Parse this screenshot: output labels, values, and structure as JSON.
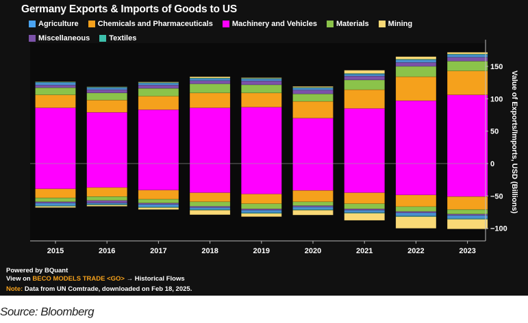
{
  "chart_data": {
    "type": "bar",
    "stacked": true,
    "title": "Germany Exports & Imports of Goods to US",
    "ylabel": "Value of Exports/Imports, USD (Billions)",
    "xlabel": "",
    "ylim": [
      -115,
      185
    ],
    "yticks": [
      -100,
      -50,
      0,
      50,
      100,
      150
    ],
    "grid": false,
    "legend_position": "top",
    "y_axis_side": "right",
    "categories": [
      "2015",
      "2016",
      "2017",
      "2018",
      "2019",
      "2020",
      "2021",
      "2022",
      "2023"
    ],
    "series": [
      {
        "name": "Machinery and Vehicles",
        "color": "#ff00ff",
        "positive": [
          86,
          79,
          83,
          86,
          87,
          70,
          85,
          97,
          106
        ],
        "negative": [
          -39,
          -37,
          -41,
          -45,
          -47,
          -41.5,
          -45,
          -48.5,
          -51
        ]
      },
      {
        "name": "Chemicals and Pharmaceuticals",
        "color": "#f5a11c",
        "positive": [
          20,
          19,
          21,
          23,
          22,
          26,
          29,
          37,
          37
        ],
        "negative": [
          -14,
          -14,
          -14,
          -14,
          -15,
          -17.5,
          -17,
          -18,
          -20
        ]
      },
      {
        "name": "Materials",
        "color": "#8bc34a",
        "positive": [
          11,
          11,
          12,
          14,
          12.5,
          11.5,
          15,
          16,
          15
        ],
        "negative": [
          -6,
          -6,
          -6,
          -7,
          -8,
          -6,
          -8,
          -7.5,
          -7
        ]
      },
      {
        "name": "Miscellaneous",
        "color": "#7b52a8",
        "positive": [
          4,
          5,
          5,
          5,
          6,
          6,
          6,
          6,
          6
        ],
        "negative": [
          -2,
          -4,
          -2,
          -2,
          -2,
          -2,
          -2,
          -2,
          -2
        ]
      },
      {
        "name": "Agriculture",
        "color": "#4a8fd0",
        "positive": [
          4,
          3,
          3,
          3,
          3,
          3,
          3,
          4,
          4
        ],
        "negative": [
          -4,
          -2,
          -4,
          -3,
          -4,
          -4,
          -3.7,
          -5,
          -5
        ]
      },
      {
        "name": "Textiles",
        "color": "#3dbfab",
        "positive": [
          1,
          1,
          1,
          1,
          1,
          1,
          1,
          1,
          1
        ],
        "negative": [
          -1,
          -1,
          -1,
          -1,
          -1,
          -1,
          -1,
          -1,
          -1
        ]
      },
      {
        "name": "Mining",
        "color": "#f9d976",
        "positive": [
          0.5,
          0.5,
          1,
          2,
          1,
          1.5,
          5,
          4,
          2.7
        ],
        "negative": [
          -2,
          -2,
          -3,
          -7,
          -5,
          -7.5,
          -11,
          -18,
          -15
        ]
      }
    ]
  },
  "legend": [
    {
      "label": "Agriculture",
      "color": "#4aa3f0"
    },
    {
      "label": "Chemicals and Pharmaceuticals",
      "color": "#f5a11c"
    },
    {
      "label": "Machinery and Vehicles",
      "color": "#ff00ff"
    },
    {
      "label": "Materials",
      "color": "#8bc34a"
    },
    {
      "label": "Mining",
      "color": "#f9d976"
    },
    {
      "label": "Miscellaneous",
      "color": "#7b52a8"
    },
    {
      "label": "Textiles",
      "color": "#3dbfab"
    }
  ],
  "footer": {
    "powered": "Powered by BQuant",
    "view_prefix": "View on ",
    "view_link": "BECO MODELS TRADE <GO>",
    "view_suffix": " → Historical Flows",
    "note_label": "Note:",
    "note_text": " Data from UN Comtrade, downloaded on Feb 18, 2025."
  },
  "source": "Source: Bloomberg"
}
